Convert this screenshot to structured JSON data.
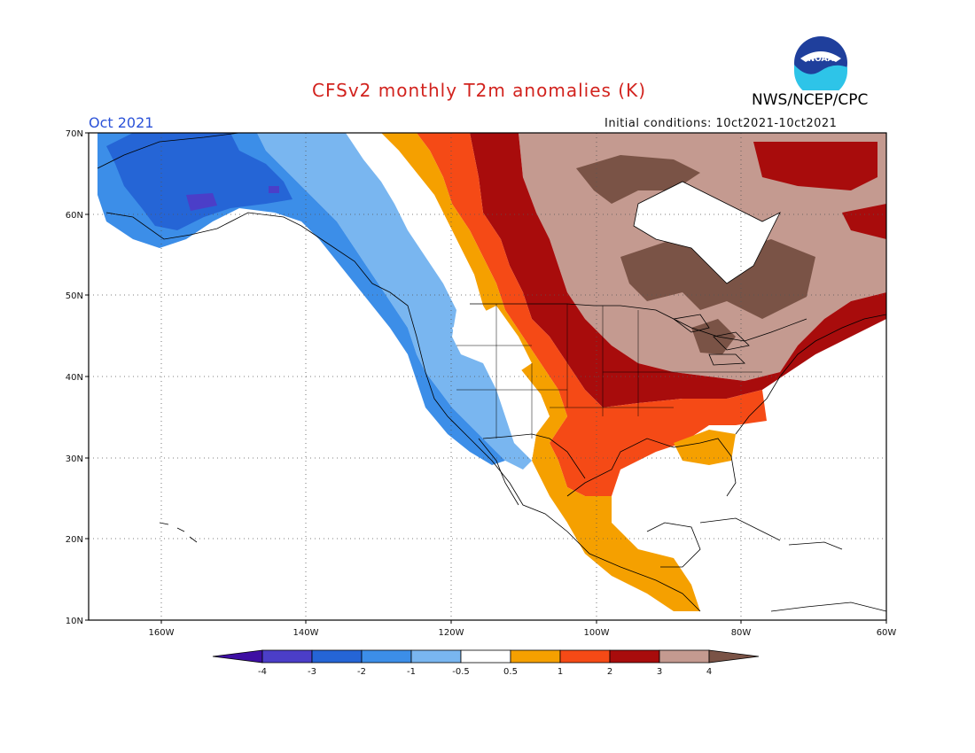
{
  "header": {
    "title": "CFSv2 monthly T2m anomalies (K)",
    "org": "NWS/NCEP/CPC",
    "month": "Oct 2021",
    "initial_conditions": "Initial conditions: 10ct2021-10ct2021",
    "logo_text": "NOAA"
  },
  "map": {
    "lat_labels": [
      "70N",
      "60N",
      "50N",
      "40N",
      "30N",
      "20N",
      "10N"
    ],
    "lon_labels": [
      "160W",
      "140W",
      "120W",
      "100W",
      "80W",
      "60W"
    ]
  },
  "colorbar": {
    "labels": [
      "-4",
      "-3",
      "-2",
      "-1",
      "-0.5",
      "0.5",
      "1",
      "2",
      "3",
      "4"
    ],
    "colors": [
      "#3e0fa3",
      "#4b3ec8",
      "#2565d6",
      "#3c8ee8",
      "#79b6f0",
      "#ffffff",
      "#f5a000",
      "#f54a16",
      "#a80c0c",
      "#c49a90",
      "#7a5346"
    ]
  }
}
